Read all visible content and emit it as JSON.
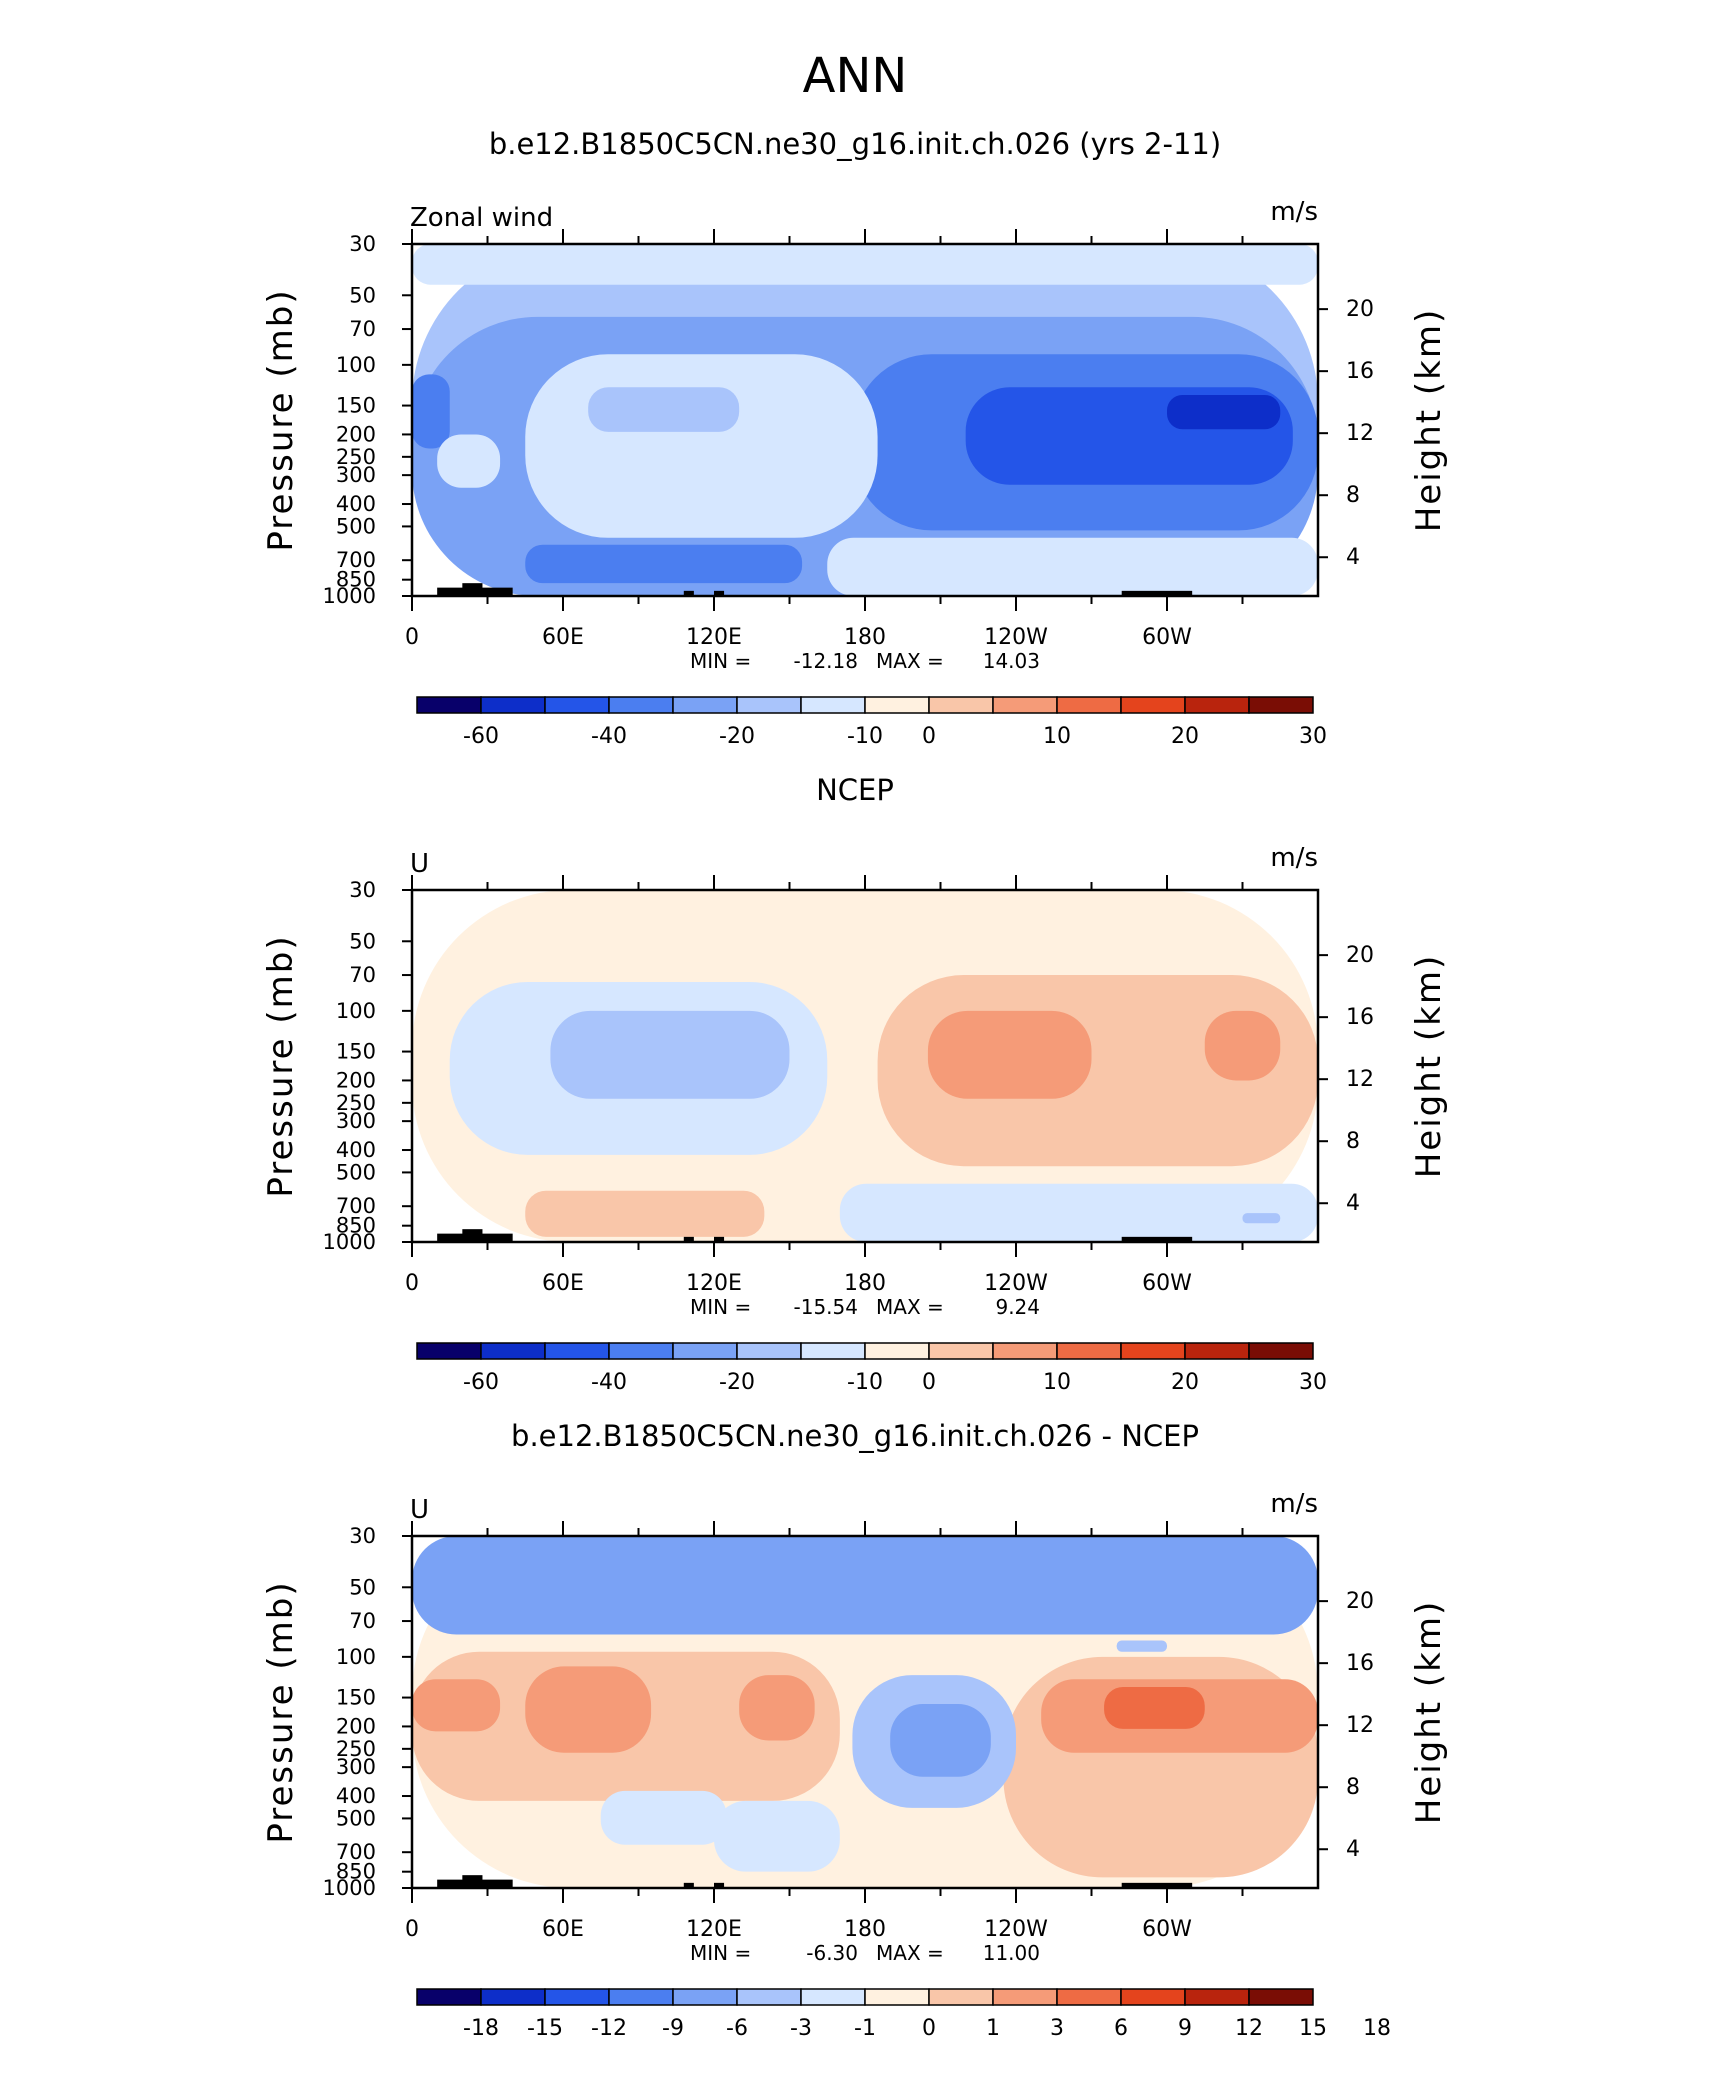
{
  "page_title": "ANN",
  "colors": {
    "frame": "#000000",
    "land_mask": "#000000"
  },
  "chart_data": [
    {
      "type": "heatmap",
      "title": "b.e12.B1850C5CN.ne30_g16.init.ch.026 (yrs 2-11)",
      "left_label": "Zonal wind",
      "units": "m/s",
      "ylabel": "Pressure (mb)",
      "ylabel_right": "Height (km)",
      "x_ticks": [
        "0",
        "60E",
        "120E",
        "180",
        "120W",
        "60W"
      ],
      "y_ticks": [
        "30",
        "50",
        "70",
        "100",
        "150",
        "200",
        "250",
        "300",
        "400",
        "500",
        "700",
        "850",
        "1000"
      ],
      "height_ticks": [
        "20",
        "16",
        "12",
        "8",
        "4"
      ],
      "stats": {
        "min_label": "MIN =",
        "min": "-12.18",
        "max_label": "MAX =",
        "max": "14.03"
      },
      "colorbar": {
        "colors": [
          "#08006a",
          "#0d2ec9",
          "#2455e8",
          "#4b7ef0",
          "#7aa2f5",
          "#a9c4fb",
          "#d6e7ff",
          "#fff1e0",
          "#f9c6a9",
          "#f59b78",
          "#ee6b44",
          "#e4441d",
          "#b9240d",
          "#7a0d05"
        ],
        "labels": [
          "-60",
          "-40",
          "-20",
          "-10",
          "0",
          "10",
          "20",
          "30"
        ],
        "label_boundaries": [
          1,
          3,
          5,
          7,
          8,
          10,
          12,
          14
        ]
      },
      "fields": [
        {
          "level": 5,
          "lon": [
            0,
            360
          ],
          "p": [
            30,
            1000
          ]
        },
        {
          "level": 4,
          "lon": [
            0,
            360
          ],
          "p": [
            62,
            1000
          ]
        },
        {
          "level": 3,
          "lon": [
            175,
            360
          ],
          "p": [
            90,
            520
          ]
        },
        {
          "level": 2,
          "lon": [
            220,
            350
          ],
          "p": [
            125,
            330
          ]
        },
        {
          "level": 1,
          "lon": [
            300,
            345
          ],
          "p": [
            135,
            190
          ]
        },
        {
          "level": 3,
          "lon": [
            45,
            155
          ],
          "p": [
            600,
            880
          ]
        },
        {
          "level": 3,
          "lon": [
            0,
            15
          ],
          "p": [
            110,
            230
          ]
        },
        {
          "level": 6,
          "lon": [
            0,
            360
          ],
          "p": [
            30,
            45
          ]
        },
        {
          "level": 6,
          "lon": [
            10,
            35
          ],
          "p": [
            200,
            340
          ]
        },
        {
          "level": 6,
          "lon": [
            45,
            185
          ],
          "p": [
            90,
            560
          ]
        },
        {
          "level": 6,
          "lon": [
            165,
            360
          ],
          "p": [
            560,
            1000
          ]
        },
        {
          "level": 5,
          "lon": [
            70,
            130
          ],
          "p": [
            125,
            195
          ]
        }
      ]
    },
    {
      "type": "heatmap",
      "title": "NCEP",
      "left_label": "U",
      "units": "m/s",
      "ylabel": "Pressure (mb)",
      "ylabel_right": "Height (km)",
      "x_ticks": [
        "0",
        "60E",
        "120E",
        "180",
        "120W",
        "60W"
      ],
      "y_ticks": [
        "30",
        "50",
        "70",
        "100",
        "150",
        "200",
        "250",
        "300",
        "400",
        "500",
        "700",
        "850",
        "1000"
      ],
      "height_ticks": [
        "20",
        "16",
        "12",
        "8",
        "4"
      ],
      "stats": {
        "min_label": "MIN =",
        "min": "-15.54",
        "max_label": "MAX =",
        "max": "9.24"
      },
      "colorbar": {
        "colors": [
          "#08006a",
          "#0d2ec9",
          "#2455e8",
          "#4b7ef0",
          "#7aa2f5",
          "#a9c4fb",
          "#d6e7ff",
          "#fff1e0",
          "#f9c6a9",
          "#f59b78",
          "#ee6b44",
          "#e4441d",
          "#b9240d",
          "#7a0d05"
        ],
        "labels": [
          "-60",
          "-40",
          "-20",
          "-10",
          "0",
          "10",
          "20",
          "30"
        ],
        "label_boundaries": [
          1,
          3,
          5,
          7,
          8,
          10,
          12,
          14
        ]
      },
      "fields": [
        {
          "level": 7,
          "lon": [
            0,
            360
          ],
          "p": [
            30,
            1000
          ]
        },
        {
          "level": 8,
          "lon": [
            185,
            360
          ],
          "p": [
            70,
            470
          ]
        },
        {
          "level": 9,
          "lon": [
            205,
            270
          ],
          "p": [
            100,
            240
          ]
        },
        {
          "level": 9,
          "lon": [
            315,
            345
          ],
          "p": [
            100,
            200
          ]
        },
        {
          "level": 8,
          "lon": [
            45,
            140
          ],
          "p": [
            600,
            950
          ]
        },
        {
          "level": 6,
          "lon": [
            15,
            165
          ],
          "p": [
            75,
            420
          ]
        },
        {
          "level": 5,
          "lon": [
            55,
            150
          ],
          "p": [
            100,
            240
          ]
        },
        {
          "level": 6,
          "lon": [
            170,
            360
          ],
          "p": [
            560,
            1000
          ]
        },
        {
          "level": 5,
          "lon": [
            330,
            345
          ],
          "p": [
            750,
            830
          ]
        }
      ]
    },
    {
      "type": "heatmap",
      "title": "b.e12.B1850C5CN.ne30_g16.init.ch.026 - NCEP",
      "left_label": "U",
      "units": "m/s",
      "ylabel": "Pressure (mb)",
      "ylabel_right": "Height (km)",
      "x_ticks": [
        "0",
        "60E",
        "120E",
        "180",
        "120W",
        "60W"
      ],
      "y_ticks": [
        "30",
        "50",
        "70",
        "100",
        "150",
        "200",
        "250",
        "300",
        "400",
        "500",
        "700",
        "850",
        "1000"
      ],
      "height_ticks": [
        "20",
        "16",
        "12",
        "8",
        "4"
      ],
      "stats": {
        "min_label": "MIN =",
        "min": "-6.30",
        "max_label": "MAX =",
        "max": "11.00"
      },
      "colorbar": {
        "colors": [
          "#08006a",
          "#0d2ec9",
          "#2455e8",
          "#4b7ef0",
          "#7aa2f5",
          "#a9c4fb",
          "#d6e7ff",
          "#fff1e0",
          "#f9c6a9",
          "#f59b78",
          "#ee6b44",
          "#e4441d",
          "#b9240d",
          "#7a0d05"
        ],
        "labels": [
          "-18",
          "-15",
          "-12",
          "-9",
          "-6",
          "-3",
          "-1",
          "0",
          "1",
          "3",
          "6",
          "9",
          "12",
          "15",
          "18"
        ],
        "label_boundaries": [
          1,
          2,
          3,
          4,
          5,
          6,
          7,
          8,
          9,
          10,
          11,
          12,
          13,
          14,
          15
        ]
      },
      "fields": [
        {
          "level": 7,
          "lon": [
            0,
            360
          ],
          "p": [
            30,
            1000
          ]
        },
        {
          "level": 4,
          "lon": [
            0,
            360
          ],
          "p": [
            30,
            80
          ]
        },
        {
          "level": 8,
          "lon": [
            0,
            170
          ],
          "p": [
            95,
            420
          ]
        },
        {
          "level": 9,
          "lon": [
            0,
            35
          ],
          "p": [
            125,
            210
          ]
        },
        {
          "level": 9,
          "lon": [
            45,
            95
          ],
          "p": [
            110,
            260
          ]
        },
        {
          "level": 9,
          "lon": [
            130,
            160
          ],
          "p": [
            120,
            230
          ]
        },
        {
          "level": 8,
          "lon": [
            235,
            360
          ],
          "p": [
            100,
            900
          ]
        },
        {
          "level": 9,
          "lon": [
            250,
            360
          ],
          "p": [
            125,
            260
          ]
        },
        {
          "level": 10,
          "lon": [
            275,
            315
          ],
          "p": [
            135,
            205
          ]
        },
        {
          "level": 5,
          "lon": [
            175,
            240
          ],
          "p": [
            120,
            450
          ]
        },
        {
          "level": 4,
          "lon": [
            190,
            230
          ],
          "p": [
            160,
            330
          ]
        },
        {
          "level": 6,
          "lon": [
            75,
            125
          ],
          "p": [
            380,
            650
          ]
        },
        {
          "level": 6,
          "lon": [
            120,
            170
          ],
          "p": [
            420,
            850
          ]
        },
        {
          "level": 5,
          "lon": [
            280,
            300
          ],
          "p": [
            85,
            95
          ]
        }
      ]
    }
  ]
}
